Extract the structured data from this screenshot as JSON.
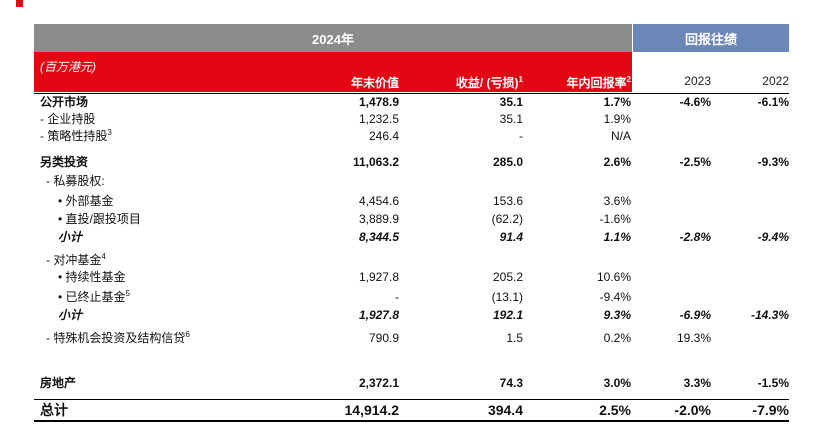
{
  "header": {
    "period": "2024年",
    "history": "回报往绩"
  },
  "unit": "(百万港元)",
  "columns": {
    "value": "年末价值",
    "gain_text": "收益/ (亏损)",
    "gain_sup": "1",
    "return_text": "年内回报率",
    "return_sup": "2",
    "y2023": "2023",
    "y2022": "2022"
  },
  "rows": [
    {
      "label": "公开市场",
      "sup": "",
      "v1": "1,478.9",
      "v2": "35.1",
      "v3": "1.7%",
      "v4": "-4.6%",
      "v5": "-6.1%"
    },
    {
      "label": "- 企业持股",
      "sup": "",
      "v1": "1,232.5",
      "v2": "35.1",
      "v3": "1.9%",
      "v4": "",
      "v5": ""
    },
    {
      "label": "- 策略性持股",
      "sup": "3",
      "v1": "246.4",
      "v2": "-",
      "v3": "N/A",
      "v4": "",
      "v5": ""
    },
    {
      "label": "另类投资",
      "sup": "",
      "v1": "11,063.2",
      "v2": "285.0",
      "v3": "2.6%",
      "v4": "-2.5%",
      "v5": "-9.3%"
    },
    {
      "label": "- 私募股权:",
      "sup": "",
      "v1": "",
      "v2": "",
      "v3": "",
      "v4": "",
      "v5": ""
    },
    {
      "label": "• 外部基金",
      "sup": "",
      "v1": "4,454.6",
      "v2": "153.6",
      "v3": "3.6%",
      "v4": "",
      "v5": ""
    },
    {
      "label": "• 直投/跟投项目",
      "sup": "",
      "v1": "3,889.9",
      "v2": "(62.2)",
      "v3": "-1.6%",
      "v4": "",
      "v5": ""
    },
    {
      "label": "小计",
      "sup": "",
      "v1": "8,344.5",
      "v2": "91.4",
      "v3": "1.1%",
      "v4": "-2.8%",
      "v5": "-9.4%"
    },
    {
      "label": "- 对冲基金",
      "sup": "4",
      "v1": "",
      "v2": "",
      "v3": "",
      "v4": "",
      "v5": ""
    },
    {
      "label": "• 持续性基金",
      "sup": "",
      "v1": "1,927.8",
      "v2": "205.2",
      "v3": "10.6%",
      "v4": "",
      "v5": ""
    },
    {
      "label": "• 已终止基金",
      "sup": "5",
      "v1": "-",
      "v2": "(13.1)",
      "v3": "-9.4%",
      "v4": "",
      "v5": ""
    },
    {
      "label": "小计",
      "sup": "",
      "v1": "1,927.8",
      "v2": "192.1",
      "v3": "9.3%",
      "v4": "-6.9%",
      "v5": "-14.3%"
    },
    {
      "label": "- 特殊机会投资及结构信贷",
      "sup": "6",
      "v1": "790.9",
      "v2": "1.5",
      "v3": "0.2%",
      "v4": "19.3%",
      "v5": ""
    },
    {
      "label": "房地产",
      "sup": "",
      "v1": "2,372.1",
      "v2": "74.3",
      "v3": "3.0%",
      "v4": "3.3%",
      "v5": "-1.5%"
    },
    {
      "label": "总计",
      "sup": "",
      "v1": "14,914.2",
      "v2": "394.4",
      "v3": "2.5%",
      "v4": "-2.0%",
      "v5": "-7.9%"
    }
  ]
}
